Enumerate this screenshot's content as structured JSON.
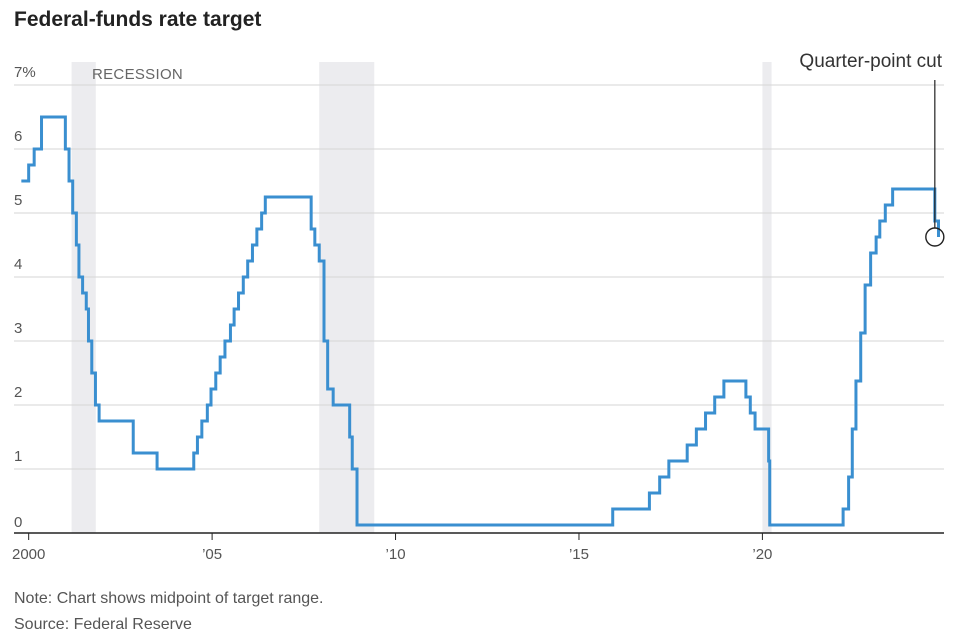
{
  "chart_data": {
    "type": "line",
    "title": "Federal-funds rate target",
    "ylim": [
      0,
      7
    ],
    "xlim": [
      1999.6,
      2024.95
    ],
    "y_ticks": [
      {
        "value": 0,
        "label": "0"
      },
      {
        "value": 1,
        "label": "1"
      },
      {
        "value": 2,
        "label": "2"
      },
      {
        "value": 3,
        "label": "3"
      },
      {
        "value": 4,
        "label": "4"
      },
      {
        "value": 5,
        "label": "5"
      },
      {
        "value": 6,
        "label": "6"
      },
      {
        "value": 7,
        "label": "7%"
      }
    ],
    "x_ticks": [
      {
        "value": 2000,
        "label": "2000"
      },
      {
        "value": 2005,
        "label": "’05"
      },
      {
        "value": 2010,
        "label": "’10"
      },
      {
        "value": 2015,
        "label": "’15"
      },
      {
        "value": 2020,
        "label": "’20"
      }
    ],
    "recession_label": "RECESSION",
    "recessions": [
      [
        2001.17,
        2001.83
      ],
      [
        2007.92,
        2009.42
      ],
      [
        2020.0,
        2020.25
      ]
    ],
    "grid": "horizontal",
    "annotation": {
      "text": "Quarter-point cut",
      "x": 2024.7,
      "y": 4.625
    },
    "series": [
      {
        "color": "#3a8fd0",
        "step": true,
        "points": [
          [
            1999.8,
            5.5
          ],
          [
            2000.0,
            5.75
          ],
          [
            2000.15,
            6.0
          ],
          [
            2000.35,
            6.5
          ],
          [
            2001.0,
            6.0
          ],
          [
            2001.1,
            5.5
          ],
          [
            2001.2,
            5.0
          ],
          [
            2001.3,
            4.5
          ],
          [
            2001.37,
            4.0
          ],
          [
            2001.47,
            3.75
          ],
          [
            2001.57,
            3.5
          ],
          [
            2001.63,
            3.0
          ],
          [
            2001.72,
            2.5
          ],
          [
            2001.82,
            2.0
          ],
          [
            2001.92,
            1.75
          ],
          [
            2002.85,
            1.25
          ],
          [
            2003.5,
            1.0
          ],
          [
            2004.5,
            1.25
          ],
          [
            2004.6,
            1.5
          ],
          [
            2004.72,
            1.75
          ],
          [
            2004.87,
            2.0
          ],
          [
            2004.97,
            2.25
          ],
          [
            2005.1,
            2.5
          ],
          [
            2005.22,
            2.75
          ],
          [
            2005.35,
            3.0
          ],
          [
            2005.5,
            3.25
          ],
          [
            2005.6,
            3.5
          ],
          [
            2005.72,
            3.75
          ],
          [
            2005.85,
            4.0
          ],
          [
            2005.97,
            4.25
          ],
          [
            2006.1,
            4.5
          ],
          [
            2006.22,
            4.75
          ],
          [
            2006.35,
            5.0
          ],
          [
            2006.45,
            5.25
          ],
          [
            2007.7,
            4.75
          ],
          [
            2007.8,
            4.5
          ],
          [
            2007.92,
            4.25
          ],
          [
            2008.05,
            3.0
          ],
          [
            2008.15,
            2.25
          ],
          [
            2008.3,
            2.0
          ],
          [
            2008.75,
            1.5
          ],
          [
            2008.82,
            1.0
          ],
          [
            2008.95,
            0.125
          ],
          [
            2015.92,
            0.375
          ],
          [
            2016.92,
            0.625
          ],
          [
            2017.2,
            0.875
          ],
          [
            2017.45,
            1.125
          ],
          [
            2017.95,
            1.375
          ],
          [
            2018.2,
            1.625
          ],
          [
            2018.45,
            1.875
          ],
          [
            2018.7,
            2.125
          ],
          [
            2018.95,
            2.375
          ],
          [
            2019.55,
            2.125
          ],
          [
            2019.67,
            1.875
          ],
          [
            2019.8,
            1.625
          ],
          [
            2020.17,
            1.125
          ],
          [
            2020.2,
            0.125
          ],
          [
            2022.2,
            0.375
          ],
          [
            2022.35,
            0.875
          ],
          [
            2022.45,
            1.625
          ],
          [
            2022.55,
            2.375
          ],
          [
            2022.68,
            3.125
          ],
          [
            2022.8,
            3.875
          ],
          [
            2022.95,
            4.375
          ],
          [
            2023.1,
            4.625
          ],
          [
            2023.2,
            4.875
          ],
          [
            2023.35,
            5.125
          ],
          [
            2023.55,
            5.375
          ],
          [
            2024.7,
            4.875
          ],
          [
            2024.8,
            4.625
          ]
        ]
      }
    ]
  },
  "footer": {
    "note": "Note: Chart shows midpoint of target range.",
    "source": "Source: Federal Reserve"
  }
}
